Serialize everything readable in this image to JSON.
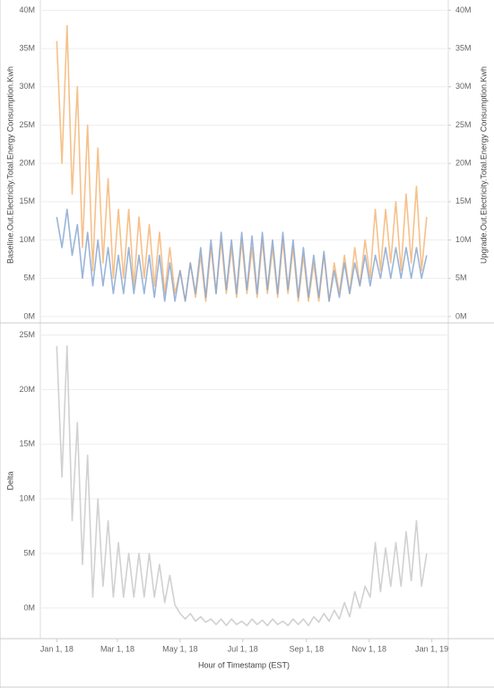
{
  "chart_data": [
    {
      "type": "line",
      "y_label": "Baseline.Out.Electricity.Total.Energy Consumption.Kwh",
      "y2_label": "Upgrade.Out.Electricity.Total.Energy Consumption.Kwh",
      "x": [
        "2018-01-01",
        "2018-01-06",
        "2018-01-11",
        "2018-01-16",
        "2018-01-21",
        "2018-01-26",
        "2018-01-31",
        "2018-02-05",
        "2018-02-10",
        "2018-02-15",
        "2018-02-20",
        "2018-02-25",
        "2018-03-02",
        "2018-03-07",
        "2018-03-12",
        "2018-03-17",
        "2018-03-22",
        "2018-03-27",
        "2018-04-01",
        "2018-04-06",
        "2018-04-11",
        "2018-04-16",
        "2018-04-21",
        "2018-04-26",
        "2018-05-01",
        "2018-05-06",
        "2018-05-11",
        "2018-05-16",
        "2018-05-21",
        "2018-05-26",
        "2018-05-31",
        "2018-06-05",
        "2018-06-10",
        "2018-06-15",
        "2018-06-20",
        "2018-06-25",
        "2018-06-30",
        "2018-07-05",
        "2018-07-10",
        "2018-07-15",
        "2018-07-20",
        "2018-07-25",
        "2018-07-30",
        "2018-08-04",
        "2018-08-09",
        "2018-08-14",
        "2018-08-19",
        "2018-08-24",
        "2018-08-29",
        "2018-09-03",
        "2018-09-08",
        "2018-09-13",
        "2018-09-18",
        "2018-09-23",
        "2018-09-28",
        "2018-10-03",
        "2018-10-08",
        "2018-10-13",
        "2018-10-18",
        "2018-10-23",
        "2018-10-28",
        "2018-11-02",
        "2018-11-07",
        "2018-11-12",
        "2018-11-17",
        "2018-11-22",
        "2018-11-27",
        "2018-12-02",
        "2018-12-07",
        "2018-12-12",
        "2018-12-17",
        "2018-12-22",
        "2018-12-27"
      ],
      "xlim": [
        "2017-12-16",
        "2019-01-17"
      ],
      "ylim": [
        -600000,
        40400000
      ],
      "yticks": [
        {
          "value": 0,
          "label": "0M"
        },
        {
          "value": 5000000,
          "label": "5M"
        },
        {
          "value": 10000000,
          "label": "10M"
        },
        {
          "value": 15000000,
          "label": "15M"
        },
        {
          "value": 20000000,
          "label": "20M"
        },
        {
          "value": 25000000,
          "label": "25M"
        },
        {
          "value": 30000000,
          "label": "30M"
        },
        {
          "value": 35000000,
          "label": "35M"
        },
        {
          "value": 40000000,
          "label": "40M"
        }
      ],
      "y2lim": [
        -600000,
        40400000
      ],
      "y2ticks": [
        {
          "value": 0,
          "label": "0M"
        },
        {
          "value": 5000000,
          "label": "5M"
        },
        {
          "value": 10000000,
          "label": "10M"
        },
        {
          "value": 15000000,
          "label": "15M"
        },
        {
          "value": 20000000,
          "label": "20M"
        },
        {
          "value": 25000000,
          "label": "25M"
        },
        {
          "value": 30000000,
          "label": "30M"
        },
        {
          "value": 35000000,
          "label": "35M"
        },
        {
          "value": 40000000,
          "label": "40M"
        }
      ],
      "grid": true,
      "series": [
        {
          "axis": "y2",
          "color": "#f5b677",
          "values": [
            36000000,
            20000000,
            38000000,
            16000000,
            30000000,
            9000000,
            25000000,
            6000000,
            22000000,
            7000000,
            18000000,
            5000000,
            14000000,
            5000000,
            14000000,
            4000000,
            13000000,
            5000000,
            12000000,
            4000000,
            11000000,
            3000000,
            9000000,
            3000000,
            6000000,
            2000000,
            7000000,
            2500000,
            8000000,
            2000000,
            9000000,
            3000000,
            10000000,
            3000000,
            9000000,
            2500000,
            10000000,
            3000000,
            9000000,
            2500000,
            10000000,
            3000000,
            9000000,
            2500000,
            10000000,
            3000000,
            9000000,
            2000000,
            8000000,
            2000000,
            7000000,
            2000000,
            8000000,
            2000000,
            7000000,
            3000000,
            8000000,
            3000000,
            9000000,
            4000000,
            10000000,
            5000000,
            14000000,
            6000000,
            14000000,
            7000000,
            15000000,
            6000000,
            16000000,
            7000000,
            17000000,
            6000000,
            13000000
          ]
        },
        {
          "axis": "y",
          "color": "#8aa8d2",
          "values": [
            13000000,
            9000000,
            14000000,
            8000000,
            12000000,
            5000000,
            11000000,
            4000000,
            10000000,
            4000000,
            9000000,
            3000000,
            8000000,
            3000000,
            9000000,
            3000000,
            8000000,
            3000000,
            8000000,
            2500000,
            8000000,
            2000000,
            7000000,
            2000000,
            6000000,
            2000000,
            7000000,
            3000000,
            9000000,
            2500000,
            10000000,
            3000000,
            11000000,
            3500000,
            10000000,
            3000000,
            11000000,
            3500000,
            10500000,
            3000000,
            11000000,
            3500000,
            10000000,
            3000000,
            11000000,
            3500000,
            10000000,
            2500000,
            9000000,
            2500000,
            8000000,
            2500000,
            8500000,
            2000000,
            6000000,
            2500000,
            7000000,
            3000000,
            7000000,
            4000000,
            8000000,
            4000000,
            8000000,
            5000000,
            9000000,
            5000000,
            9000000,
            5000000,
            9000000,
            5000000,
            9000000,
            5000000,
            8000000
          ]
        }
      ]
    },
    {
      "type": "line",
      "y_label": "Delta",
      "x_label": "Hour of Timestamp (EST)",
      "x": [
        "2018-01-01",
        "2018-01-06",
        "2018-01-11",
        "2018-01-16",
        "2018-01-21",
        "2018-01-26",
        "2018-01-31",
        "2018-02-05",
        "2018-02-10",
        "2018-02-15",
        "2018-02-20",
        "2018-02-25",
        "2018-03-02",
        "2018-03-07",
        "2018-03-12",
        "2018-03-17",
        "2018-03-22",
        "2018-03-27",
        "2018-04-01",
        "2018-04-06",
        "2018-04-11",
        "2018-04-16",
        "2018-04-21",
        "2018-04-26",
        "2018-05-01",
        "2018-05-06",
        "2018-05-11",
        "2018-05-16",
        "2018-05-21",
        "2018-05-26",
        "2018-05-31",
        "2018-06-05",
        "2018-06-10",
        "2018-06-15",
        "2018-06-20",
        "2018-06-25",
        "2018-06-30",
        "2018-07-05",
        "2018-07-10",
        "2018-07-15",
        "2018-07-20",
        "2018-07-25",
        "2018-07-30",
        "2018-08-04",
        "2018-08-09",
        "2018-08-14",
        "2018-08-19",
        "2018-08-24",
        "2018-08-29",
        "2018-09-03",
        "2018-09-08",
        "2018-09-13",
        "2018-09-18",
        "2018-09-23",
        "2018-09-28",
        "2018-10-03",
        "2018-10-08",
        "2018-10-13",
        "2018-10-18",
        "2018-10-23",
        "2018-10-28",
        "2018-11-02",
        "2018-11-07",
        "2018-11-12",
        "2018-11-17",
        "2018-11-22",
        "2018-11-27",
        "2018-12-02",
        "2018-12-07",
        "2018-12-12",
        "2018-12-17",
        "2018-12-22",
        "2018-12-27"
      ],
      "xlim": [
        "2017-12-16",
        "2019-01-17"
      ],
      "xticks": [
        {
          "value": "2018-01-01",
          "label": "Jan 1, 18"
        },
        {
          "value": "2018-03-01",
          "label": "Mar 1, 18"
        },
        {
          "value": "2018-05-01",
          "label": "May 1, 18"
        },
        {
          "value": "2018-07-01",
          "label": "Jul 1, 18"
        },
        {
          "value": "2018-09-01",
          "label": "Sep 1, 18"
        },
        {
          "value": "2018-11-01",
          "label": "Nov 1, 18"
        },
        {
          "value": "2019-01-01",
          "label": "Jan 1, 19"
        }
      ],
      "ylim": [
        -2800000,
        25700000
      ],
      "yticks": [
        {
          "value": 0,
          "label": "0M"
        },
        {
          "value": 5000000,
          "label": "5M"
        },
        {
          "value": 10000000,
          "label": "10M"
        },
        {
          "value": 15000000,
          "label": "15M"
        },
        {
          "value": 20000000,
          "label": "20M"
        },
        {
          "value": 25000000,
          "label": "25M"
        }
      ],
      "grid": true,
      "series": [
        {
          "axis": "y",
          "color": "#c9c9c9",
          "values": [
            24000000,
            12000000,
            24000000,
            8000000,
            17000000,
            4000000,
            14000000,
            1000000,
            10000000,
            2000000,
            8000000,
            1000000,
            6000000,
            1000000,
            5000000,
            1000000,
            5000000,
            1000000,
            5000000,
            1000000,
            4000000,
            500000,
            3000000,
            300000,
            -500000,
            -1000000,
            -500000,
            -1200000,
            -800000,
            -1300000,
            -1000000,
            -1500000,
            -1000000,
            -1600000,
            -1000000,
            -1500000,
            -1200000,
            -1600000,
            -1000000,
            -1500000,
            -1100000,
            -1600000,
            -1000000,
            -1500000,
            -1200000,
            -1600000,
            -1000000,
            -1500000,
            -1000000,
            -1600000,
            -800000,
            -1300000,
            -500000,
            -1200000,
            -200000,
            -1000000,
            500000,
            -800000,
            1500000,
            0,
            2000000,
            1000000,
            6000000,
            1500000,
            5500000,
            2000000,
            6000000,
            2000000,
            7000000,
            2500000,
            8000000,
            2000000,
            5000000
          ]
        }
      ]
    }
  ]
}
